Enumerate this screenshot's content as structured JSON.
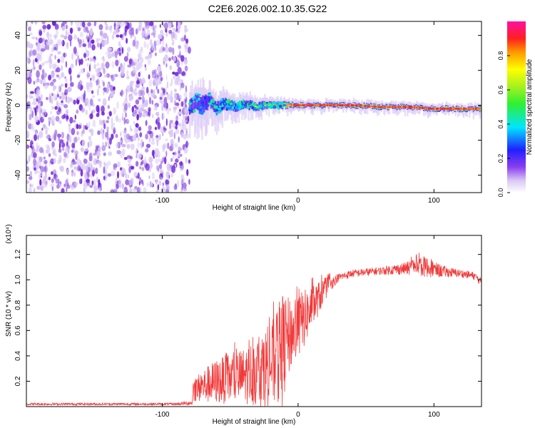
{
  "title": "C2E6.2026.002.10.35.G22",
  "colors": {
    "scatter_light": "#d9c8f5",
    "scatter_mid": "#a57ae8",
    "scatter_dark": "#6a1bd8",
    "snr_line": "#f03a3a",
    "axis": "#000000"
  },
  "chart_data": [
    {
      "type": "heatmap",
      "xlabel": "Height of straight line (km)",
      "ylabel": "Frequency (Hz)",
      "xlim": [
        -200,
        135
      ],
      "ylim": [
        -50,
        48
      ],
      "xticks": [
        -100,
        0,
        100
      ],
      "xtick_labels": [
        "-100",
        "0",
        "100"
      ],
      "yticks": [
        -40,
        -20,
        0,
        20,
        40
      ],
      "ytick_labels": [
        "-40",
        "-20",
        "0",
        "20",
        "40"
      ],
      "noise_region_x": [
        -200,
        -80
      ],
      "signal_trace": {
        "x": [
          -80,
          -75,
          -70,
          -65,
          -60,
          -55,
          -50,
          -45,
          -40,
          -35,
          -30,
          -25,
          -20,
          -10,
          0,
          10,
          20,
          40,
          60,
          80,
          100,
          120,
          135
        ],
        "freq": [
          -1,
          2,
          0,
          3,
          -2,
          1,
          0,
          -1,
          1,
          0,
          -1,
          0,
          0,
          0,
          0,
          0,
          0,
          0,
          -1,
          -1,
          -2,
          -2,
          -2
        ],
        "spread": [
          12,
          12,
          14,
          10,
          9,
          8,
          7,
          7,
          6,
          6,
          5,
          5,
          4,
          4,
          3,
          3,
          3,
          3,
          3,
          3,
          3,
          3,
          3
        ],
        "peak_amplitude": [
          0.25,
          0.3,
          0.35,
          0.4,
          0.45,
          0.5,
          0.55,
          0.55,
          0.6,
          0.65,
          0.7,
          0.75,
          0.8,
          0.9,
          0.95,
          0.95,
          0.95,
          0.95,
          0.95,
          0.95,
          0.95,
          0.95,
          0.95
        ]
      },
      "colorbar": {
        "label": "Normalized spectral amplitude",
        "range": [
          0,
          1
        ],
        "ticks": [
          0.0,
          0.2,
          0.4,
          0.6,
          0.8
        ],
        "tick_labels": [
          "0.0",
          "0.2",
          "0.4",
          "0.6",
          "0.8"
        ],
        "stops": [
          {
            "v": 0.0,
            "c": "#ffffff"
          },
          {
            "v": 0.07,
            "c": "#d9c8f5"
          },
          {
            "v": 0.15,
            "c": "#8a3df0"
          },
          {
            "v": 0.25,
            "c": "#2020ff"
          },
          {
            "v": 0.38,
            "c": "#00e5ff"
          },
          {
            "v": 0.52,
            "c": "#30f030"
          },
          {
            "v": 0.62,
            "c": "#a8f020"
          },
          {
            "v": 0.72,
            "c": "#ffff00"
          },
          {
            "v": 0.82,
            "c": "#ff9900"
          },
          {
            "v": 0.9,
            "c": "#ff2020"
          },
          {
            "v": 1.0,
            "c": "#ff10a0"
          }
        ]
      }
    },
    {
      "type": "line",
      "name": "SNR",
      "xlabel": "Height of straight line (km)",
      "ylabel": "SNR (10 * v/v)",
      "exponent_label": "(x10⁴)",
      "xlim": [
        -200,
        135
      ],
      "ylim": [
        0,
        1.35
      ],
      "xticks": [
        -100,
        0,
        100
      ],
      "xtick_labels": [
        "-100",
        "0",
        "100"
      ],
      "yticks": [
        0.2,
        0.4,
        0.6,
        0.8,
        1.0,
        1.2
      ],
      "ytick_labels": [
        "0.2",
        "0.4",
        "0.6",
        "0.8",
        "1.0",
        "1.2"
      ],
      "envelope": {
        "x": [
          -200,
          -90,
          -78,
          -77,
          -70,
          -60,
          -50,
          -40,
          -30,
          -20,
          -15,
          -12,
          -10,
          -5,
          0,
          5,
          10,
          15,
          20,
          25,
          30,
          40,
          50,
          60,
          70,
          80,
          90,
          100,
          110,
          120,
          130,
          135
        ],
        "mean": [
          0.02,
          0.02,
          0.03,
          0.12,
          0.15,
          0.18,
          0.2,
          0.22,
          0.25,
          0.3,
          0.35,
          0.38,
          0.45,
          0.55,
          0.6,
          0.68,
          0.76,
          0.84,
          0.92,
          0.98,
          1.02,
          1.05,
          1.06,
          1.07,
          1.08,
          1.09,
          1.1,
          1.08,
          1.06,
          1.05,
          1.03,
          0.98
        ],
        "jitter": [
          0.01,
          0.01,
          0.02,
          0.08,
          0.12,
          0.16,
          0.18,
          0.2,
          0.25,
          0.3,
          0.35,
          0.45,
          0.35,
          0.25,
          0.25,
          0.2,
          0.16,
          0.12,
          0.08,
          0.05,
          0.03,
          0.03,
          0.03,
          0.03,
          0.04,
          0.05,
          0.08,
          0.06,
          0.04,
          0.03,
          0.03,
          0.03
        ]
      }
    }
  ]
}
